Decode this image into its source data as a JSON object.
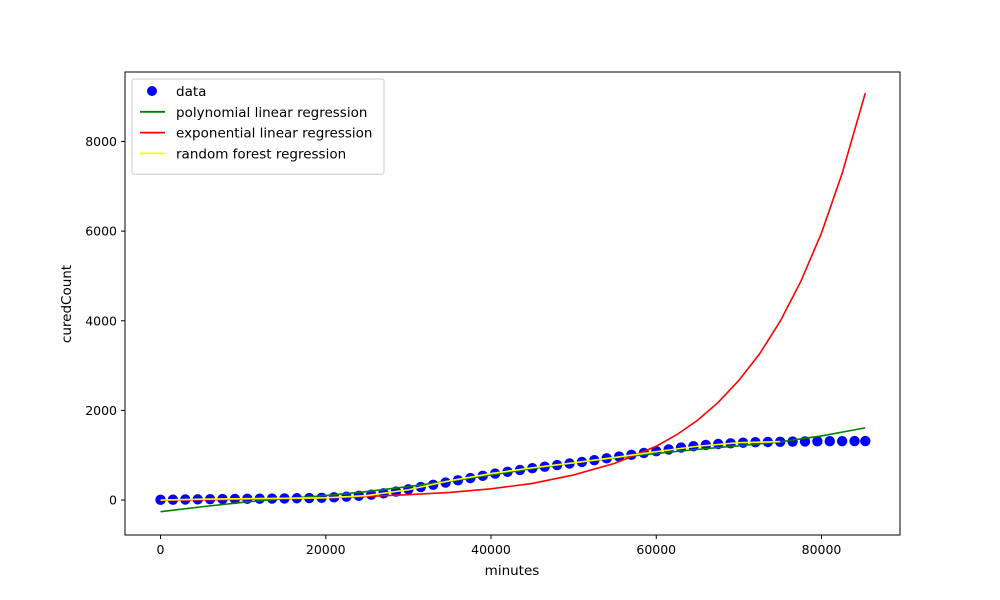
{
  "chart_data": {
    "type": "scatter",
    "title": "",
    "xlabel": "minutes",
    "ylabel": "curedCount",
    "xlim": [
      -4300,
      89500
    ],
    "ylim": [
      -780,
      9550
    ],
    "xticks": [
      0,
      20000,
      40000,
      60000,
      80000
    ],
    "yticks": [
      0,
      2000,
      4000,
      6000,
      8000
    ],
    "grid": false,
    "legend_position": "top-left",
    "colors": {
      "data": "#0000ff",
      "polynomial": "#008000",
      "exponential": "#ff0000",
      "random_forest": "#ffff00"
    },
    "legend": [
      {
        "label": "data",
        "kind": "scatter",
        "color_key": "data"
      },
      {
        "label": "polynomial linear regression",
        "kind": "line",
        "color_key": "polynomial"
      },
      {
        "label": "exponential linear regression",
        "kind": "line",
        "color_key": "exponential"
      },
      {
        "label": "random forest regression",
        "kind": "line",
        "color_key": "random_forest"
      }
    ],
    "series": [
      {
        "name": "data",
        "kind": "scatter",
        "color_key": "data",
        "x": [
          0,
          1500,
          3000,
          4500,
          6000,
          7500,
          9000,
          10500,
          12000,
          13500,
          15000,
          16500,
          18000,
          19500,
          21000,
          22500,
          24000,
          25500,
          27000,
          28500,
          30000,
          31500,
          33000,
          34500,
          36000,
          37500,
          39000,
          40500,
          42000,
          43500,
          45000,
          46500,
          48000,
          49500,
          51000,
          52500,
          54000,
          55500,
          57000,
          58500,
          60000,
          61500,
          63000,
          64500,
          66000,
          67500,
          69000,
          70500,
          72000,
          73500,
          75000,
          76500,
          78000,
          79500,
          81000,
          82500,
          84000,
          85300
        ],
        "y": [
          5,
          8,
          12,
          15,
          18,
          22,
          25,
          28,
          30,
          33,
          36,
          40,
          45,
          50,
          60,
          75,
          95,
          120,
          150,
          190,
          240,
          290,
          340,
          390,
          440,
          490,
          540,
          590,
          630,
          670,
          710,
          745,
          780,
          815,
          850,
          890,
          930,
          970,
          1010,
          1050,
          1090,
          1130,
          1170,
          1200,
          1230,
          1250,
          1265,
          1280,
          1290,
          1295,
          1300,
          1305,
          1308,
          1310,
          1312,
          1314,
          1315,
          1316
        ]
      },
      {
        "name": "polynomial linear regression",
        "kind": "line",
        "color_key": "polynomial",
        "x": [
          0,
          5000,
          10000,
          15000,
          20000,
          25000,
          30000,
          35000,
          40000,
          45000,
          50000,
          55000,
          60000,
          65000,
          70000,
          75000,
          80000,
          85300
        ],
        "y": [
          -260,
          -150,
          -50,
          30,
          100,
          190,
          300,
          420,
          560,
          700,
          830,
          940,
          1040,
          1130,
          1210,
          1300,
          1430,
          1610
        ]
      },
      {
        "name": "exponential linear regression",
        "kind": "line",
        "color_key": "exponential",
        "x": [
          0,
          5000,
          10000,
          15000,
          20000,
          25000,
          30000,
          35000,
          40000,
          45000,
          50000,
          55000,
          60000,
          62500,
          65000,
          67500,
          70000,
          72500,
          75000,
          77500,
          80000,
          82500,
          85300
        ],
        "y": [
          -5,
          5,
          15,
          30,
          50,
          80,
          120,
          170,
          250,
          370,
          560,
          820,
          1200,
          1460,
          1780,
          2180,
          2670,
          3260,
          3990,
          4880,
          5960,
          7290,
          9080
        ]
      },
      {
        "name": "random forest regression",
        "kind": "line",
        "color_key": "random_forest",
        "x": [
          0,
          5000,
          10000,
          15000,
          20000,
          25000,
          30000,
          35000,
          40000,
          45000,
          50000,
          55000,
          60000,
          65000,
          70000,
          75000
        ],
        "y": [
          0,
          20,
          30,
          38,
          50,
          100,
          230,
          430,
          590,
          720,
          830,
          950,
          1080,
          1200,
          1280,
          1305
        ]
      }
    ]
  }
}
